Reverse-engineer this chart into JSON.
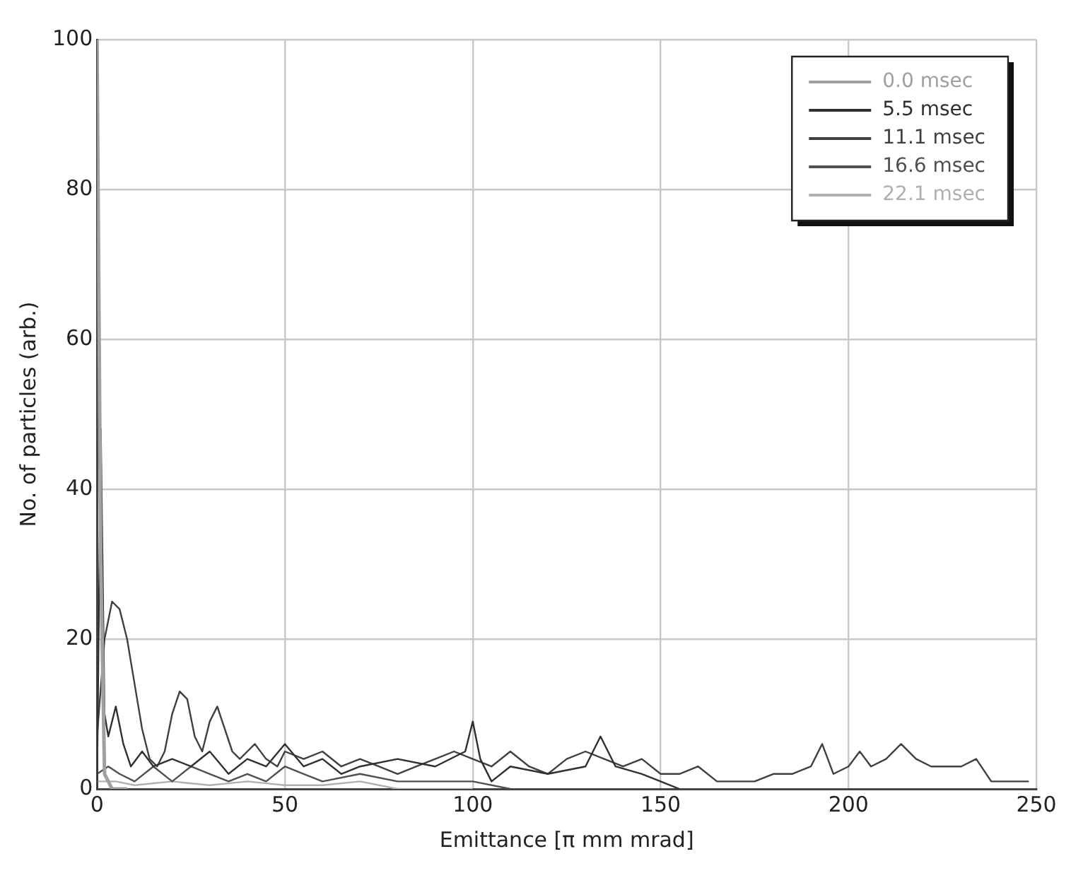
{
  "chart_data": {
    "type": "line",
    "xlabel": "Emittance [π mm mrad]",
    "ylabel": "No. of particles (arb.)",
    "xlim": [
      0,
      250
    ],
    "xticks": [
      0,
      50,
      100,
      150,
      200,
      250
    ],
    "ylim": [
      0,
      100
    ],
    "yticks": [
      0,
      20,
      40,
      60,
      80,
      100
    ],
    "grid": true,
    "legend": "top right",
    "marker": "none",
    "line_style": "solid",
    "series": [
      {
        "name": "0.0 msec",
        "color": "#a0a0a0",
        "x": [
          0,
          1,
          2,
          4,
          8
        ],
        "values": [
          100,
          30,
          2,
          0,
          0
        ]
      },
      {
        "name": "5.5 msec",
        "color": "#303030",
        "x": [
          0,
          1,
          2,
          3,
          5,
          7,
          9,
          12,
          15,
          20,
          25,
          30,
          35,
          40,
          45,
          50,
          55,
          60,
          65,
          70,
          80,
          90,
          98,
          100,
          102,
          105,
          110,
          120,
          130,
          134,
          138,
          145,
          150,
          155
        ],
        "values": [
          0,
          48,
          10,
          7,
          11,
          6,
          3,
          5,
          3,
          4,
          3,
          5,
          2,
          4,
          3,
          6,
          3,
          4,
          2,
          3,
          4,
          3,
          5,
          9,
          4,
          1,
          3,
          2,
          3,
          7,
          3,
          2,
          1,
          0
        ]
      },
      {
        "name": "11.1 msec",
        "color": "#404040",
        "x": [
          0,
          2,
          4,
          6,
          8,
          10,
          12,
          14,
          16,
          18,
          20,
          22,
          24,
          26,
          28,
          30,
          32,
          34,
          36,
          38,
          40,
          42,
          45,
          48,
          50,
          55,
          60,
          65,
          70,
          75,
          80,
          85,
          90,
          95,
          100,
          105,
          110,
          115,
          120,
          125,
          130,
          135,
          140,
          145,
          150,
          155,
          160,
          165,
          170,
          175,
          180,
          185,
          190,
          193,
          196,
          200,
          203,
          206,
          210,
          214,
          218,
          222,
          226,
          230,
          234,
          238,
          242,
          248
        ],
        "values": [
          7,
          20,
          25,
          24,
          20,
          14,
          8,
          4,
          3,
          5,
          10,
          13,
          12,
          7,
          5,
          9,
          11,
          8,
          5,
          4,
          5,
          6,
          4,
          3,
          5,
          4,
          5,
          3,
          4,
          3,
          2,
          3,
          4,
          5,
          4,
          3,
          5,
          3,
          2,
          4,
          5,
          4,
          3,
          4,
          2,
          2,
          3,
          1,
          1,
          1,
          2,
          2,
          3,
          6,
          2,
          3,
          5,
          3,
          4,
          6,
          4,
          3,
          3,
          3,
          4,
          1,
          1,
          1
        ]
      },
      {
        "name": "16.6 msec",
        "color": "#505050",
        "x": [
          0,
          3,
          6,
          10,
          15,
          20,
          25,
          30,
          35,
          40,
          45,
          50,
          55,
          60,
          70,
          80,
          90,
          100,
          110
        ],
        "values": [
          2,
          3,
          2,
          1,
          3,
          1,
          3,
          2,
          1,
          2,
          1,
          3,
          2,
          1,
          2,
          1,
          1,
          1,
          0
        ]
      },
      {
        "name": "22.1 msec",
        "color": "#b0b0b0",
        "x": [
          0,
          5,
          10,
          20,
          30,
          40,
          50,
          60,
          70,
          80,
          100
        ],
        "values": [
          1,
          1,
          0.5,
          1,
          0.5,
          1,
          0.5,
          0.5,
          1,
          0,
          0
        ]
      }
    ]
  }
}
